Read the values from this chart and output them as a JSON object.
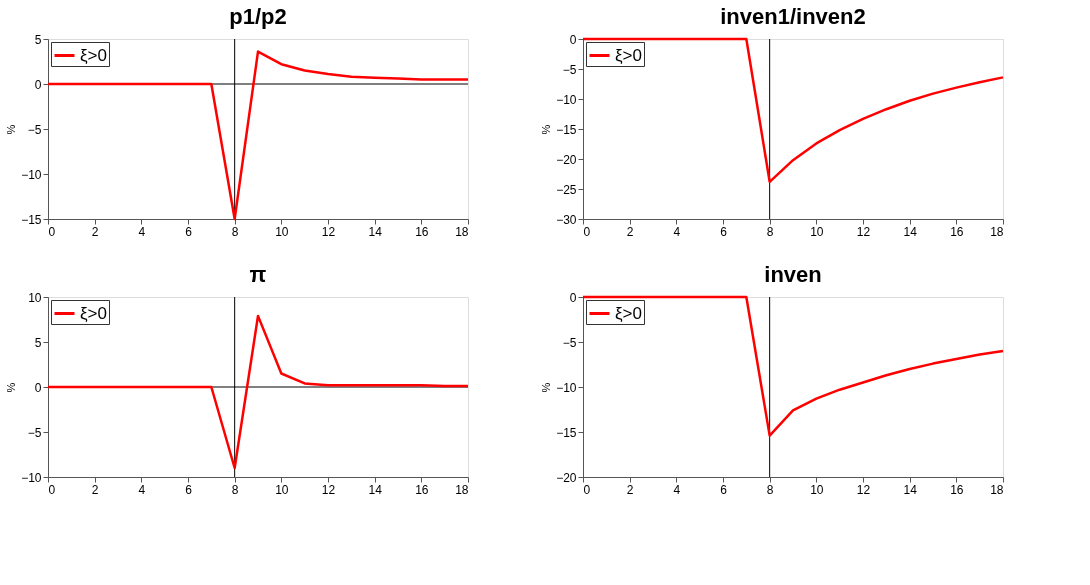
{
  "chart_data": [
    {
      "type": "line",
      "title": "p1/p2",
      "ylabel": "%",
      "x": [
        0,
        1,
        2,
        3,
        4,
        5,
        6,
        7,
        8,
        9,
        10,
        11,
        12,
        13,
        14,
        15,
        16,
        17,
        18
      ],
      "series": [
        {
          "name": "ξ>0",
          "color": "#ff0000",
          "values": [
            0,
            0,
            0,
            0,
            0,
            0,
            0,
            0,
            -15,
            3.6,
            2.2,
            1.5,
            1.1,
            0.8,
            0.7,
            0.6,
            0.5,
            0.5,
            0.5
          ]
        }
      ],
      "xlim": [
        0,
        18
      ],
      "xticks": [
        0,
        2,
        4,
        6,
        8,
        10,
        12,
        14,
        16,
        18
      ],
      "ylim": [
        -15,
        5
      ],
      "yticks": [
        -15,
        -10,
        -5,
        0,
        5
      ],
      "ref_lines": [
        {
          "axis": "x",
          "value": 8,
          "color": "#000000"
        },
        {
          "axis": "y",
          "value": 0,
          "color": "#000000"
        }
      ],
      "grid": false,
      "legend": "top left",
      "line_style": "solid",
      "marker": "none"
    },
    {
      "type": "line",
      "title": "inven1/inven2",
      "ylabel": "%",
      "x": [
        0,
        1,
        2,
        3,
        4,
        5,
        6,
        7,
        8,
        9,
        10,
        11,
        12,
        13,
        14,
        15,
        16,
        17,
        18
      ],
      "series": [
        {
          "name": "ξ>0",
          "color": "#ff0000",
          "values": [
            0,
            0,
            0,
            0,
            0,
            0,
            0,
            0,
            -23.8,
            -20.2,
            -17.4,
            -15.2,
            -13.3,
            -11.7,
            -10.3,
            -9.1,
            -8.1,
            -7.2,
            -6.4
          ]
        }
      ],
      "xlim": [
        0,
        18
      ],
      "xticks": [
        0,
        2,
        4,
        6,
        8,
        10,
        12,
        14,
        16,
        18
      ],
      "ylim": [
        -30,
        0
      ],
      "yticks": [
        -30,
        -25,
        -20,
        -15,
        -10,
        -5,
        0
      ],
      "ref_lines": [
        {
          "axis": "x",
          "value": 8,
          "color": "#000000"
        }
      ],
      "grid": false,
      "legend": "top left",
      "line_style": "solid",
      "marker": "none"
    },
    {
      "type": "line",
      "title": "π",
      "ylabel": "%",
      "x": [
        0,
        1,
        2,
        3,
        4,
        5,
        6,
        7,
        8,
        9,
        10,
        11,
        12,
        13,
        14,
        15,
        16,
        17,
        18
      ],
      "series": [
        {
          "name": "ξ>0",
          "color": "#ff0000",
          "values": [
            0,
            0,
            0,
            0,
            0,
            0,
            0,
            0,
            -9,
            7.9,
            1.5,
            0.4,
            0.2,
            0.2,
            0.2,
            0.2,
            0.2,
            0.1,
            0.1
          ]
        }
      ],
      "xlim": [
        0,
        18
      ],
      "xticks": [
        0,
        2,
        4,
        6,
        8,
        10,
        12,
        14,
        16,
        18
      ],
      "ylim": [
        -10,
        10
      ],
      "yticks": [
        -10,
        -5,
        0,
        5,
        10
      ],
      "ref_lines": [
        {
          "axis": "x",
          "value": 8,
          "color": "#000000"
        },
        {
          "axis": "y",
          "value": 0,
          "color": "#000000"
        }
      ],
      "grid": false,
      "legend": "top left",
      "line_style": "solid",
      "marker": "none"
    },
    {
      "type": "line",
      "title": "inven",
      "ylabel": "%",
      "x": [
        0,
        1,
        2,
        3,
        4,
        5,
        6,
        7,
        8,
        9,
        10,
        11,
        12,
        13,
        14,
        15,
        16,
        17,
        18
      ],
      "series": [
        {
          "name": "ξ>0",
          "color": "#ff0000",
          "values": [
            0,
            0,
            0,
            0,
            0,
            0,
            0,
            0,
            -15.4,
            -12.6,
            -11.3,
            -10.3,
            -9.5,
            -8.7,
            -8.0,
            -7.4,
            -6.9,
            -6.4,
            -6.0
          ]
        }
      ],
      "xlim": [
        0,
        18
      ],
      "xticks": [
        0,
        2,
        4,
        6,
        8,
        10,
        12,
        14,
        16,
        18
      ],
      "ylim": [
        -20,
        0
      ],
      "yticks": [
        -20,
        -15,
        -10,
        -5,
        0
      ],
      "ref_lines": [
        {
          "axis": "x",
          "value": 8,
          "color": "#000000"
        }
      ],
      "grid": false,
      "legend": "top left",
      "line_style": "solid",
      "marker": "none"
    }
  ]
}
